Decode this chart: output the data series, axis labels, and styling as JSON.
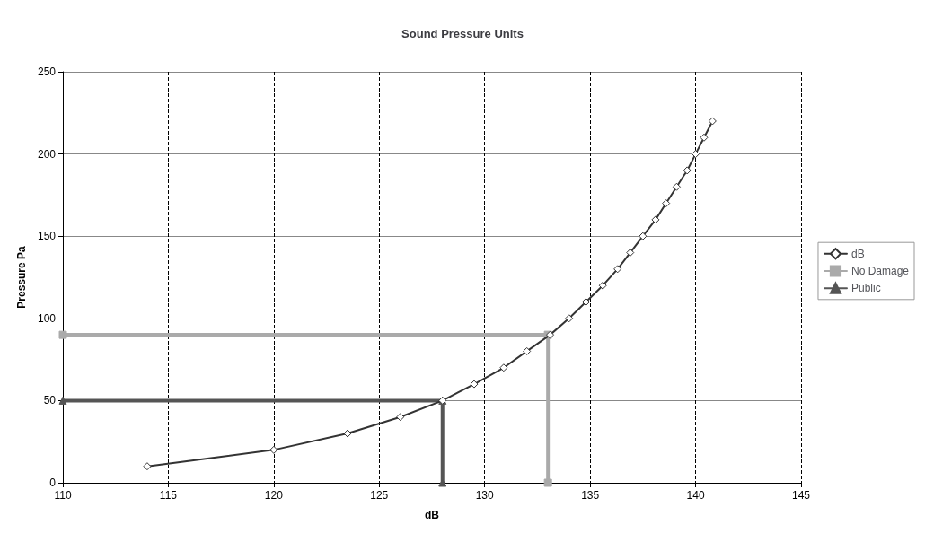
{
  "chart_data": {
    "type": "line",
    "title": "Sound Pressure Units",
    "xlabel": "dB",
    "ylabel": "Pressure Pa",
    "xlim": [
      110,
      145
    ],
    "xticks": [
      110,
      115,
      120,
      125,
      130,
      135,
      140,
      145
    ],
    "ylim": [
      0,
      250
    ],
    "yticks": [
      0,
      50,
      100,
      150,
      200,
      250
    ],
    "grid": true,
    "legend": "right",
    "series": [
      {
        "name": "dB",
        "color": "#333333",
        "marker": "diamond",
        "x": [
          114,
          120,
          123.5,
          126,
          128,
          129.5,
          130.9,
          132,
          133.1,
          134,
          134.8,
          135.6,
          136.3,
          136.9,
          137.5,
          138.1,
          138.6,
          139.1,
          139.6,
          140,
          140.4,
          140.8
        ],
        "values": [
          10,
          20,
          30,
          40,
          50,
          60,
          70,
          80,
          90,
          100,
          110,
          120,
          130,
          140,
          150,
          160,
          170,
          180,
          190,
          200,
          210,
          220
        ]
      },
      {
        "name": "No Damage",
        "color": "#aaaaaa",
        "marker": "square",
        "x": [
          110,
          133,
          133
        ],
        "values": [
          90,
          90,
          0
        ]
      },
      {
        "name": "Public",
        "color": "#555555",
        "marker": "triangle",
        "x": [
          110,
          128,
          128
        ],
        "values": [
          50,
          50,
          0
        ]
      }
    ]
  }
}
